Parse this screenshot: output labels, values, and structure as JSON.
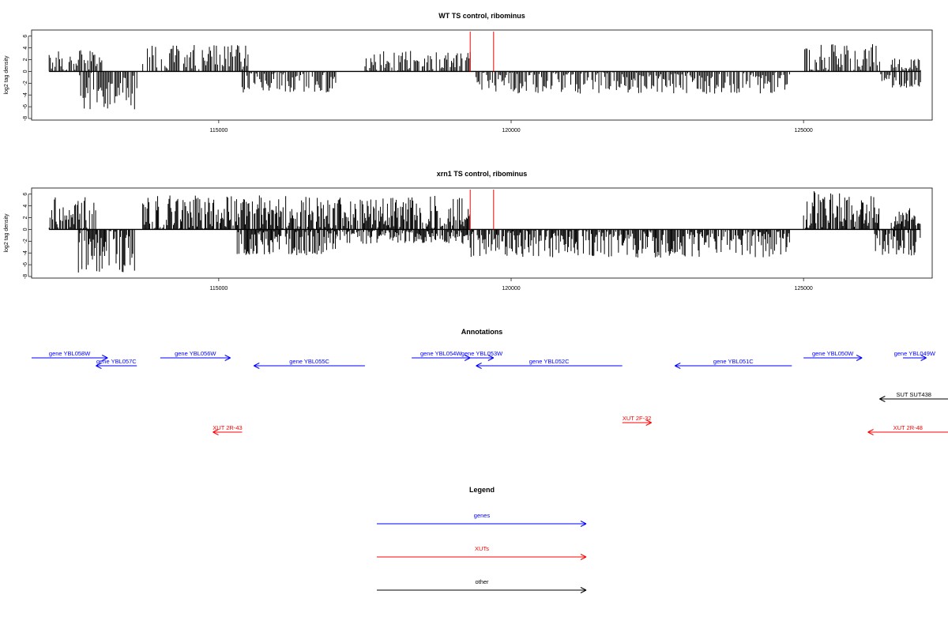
{
  "chart_data": [
    {
      "type": "bar",
      "title": "WT TS control, ribominus",
      "ylabel": "log2 tag density",
      "xlim": [
        111800,
        127200
      ],
      "ylim": [
        -8,
        6.5
      ],
      "xticks": [
        115000,
        120000,
        125000
      ],
      "yticks": [
        -8,
        -6,
        -4,
        -2,
        0,
        2,
        4,
        6
      ],
      "markers": [
        119300,
        119700
      ],
      "marker_color": "#ff0000",
      "profile": {
        "start": 112100,
        "end": 127000,
        "bin": 20,
        "plus": [
          {
            "from": 112100,
            "to": 113000,
            "max": 3.6
          },
          {
            "from": 113700,
            "to": 115500,
            "max": 4.5
          },
          {
            "from": 117500,
            "to": 119300,
            "max": 3.5
          },
          {
            "from": 125000,
            "to": 126300,
            "max": 4.8
          },
          {
            "from": 126500,
            "to": 127000,
            "max": 2.4
          }
        ],
        "minus": [
          {
            "from": 112600,
            "to": 113600,
            "max": 6.5
          },
          {
            "from": 115400,
            "to": 117000,
            "max": 3.6
          },
          {
            "from": 119400,
            "to": 124800,
            "max": 3.8
          },
          {
            "from": 126300,
            "to": 127000,
            "max": 2.8
          }
        ]
      }
    },
    {
      "type": "bar",
      "title": "xrn1 TS control, ribominus",
      "ylabel": "log2 tag density",
      "xlim": [
        111800,
        127200
      ],
      "ylim": [
        -8,
        6.5
      ],
      "xticks": [
        115000,
        120000,
        125000
      ],
      "yticks": [
        -8,
        -6,
        -4,
        -2,
        0,
        2,
        4,
        6
      ],
      "markers": [
        119300,
        119700
      ],
      "marker_color": "#ff0000",
      "profile": {
        "start": 112100,
        "end": 127000,
        "bin": 15,
        "plus": [
          {
            "from": 112100,
            "to": 112900,
            "max": 5.5
          },
          {
            "from": 113700,
            "to": 119300,
            "max": 5.8
          },
          {
            "from": 125000,
            "to": 126300,
            "max": 6.5
          },
          {
            "from": 126500,
            "to": 127000,
            "max": 3.6
          }
        ],
        "minus": [
          {
            "from": 112600,
            "to": 113600,
            "max": 7.4
          },
          {
            "from": 115300,
            "to": 117000,
            "max": 4.5
          },
          {
            "from": 117000,
            "to": 119300,
            "max": 2.5
          },
          {
            "from": 119300,
            "to": 124800,
            "max": 4.8
          },
          {
            "from": 126200,
            "to": 127000,
            "max": 4.5
          }
        ]
      }
    }
  ],
  "annotations": {
    "title": "Annotations",
    "colors": {
      "genes": "#0000ff",
      "XUTs": "#ff0000",
      "other": "#000000"
    },
    "features": [
      {
        "label": "gene YBL058W",
        "start": 111800,
        "end": 113100,
        "strand": "+",
        "class": "genes",
        "row": 0
      },
      {
        "label": "gene YBL057C",
        "start": 112900,
        "end": 113600,
        "strand": "-",
        "class": "genes",
        "row": 1
      },
      {
        "label": "gene YBL056W",
        "start": 114000,
        "end": 115200,
        "strand": "+",
        "class": "genes",
        "row": 0
      },
      {
        "label": "gene YBL055C",
        "start": 115600,
        "end": 117500,
        "strand": "-",
        "class": "genes",
        "row": 1
      },
      {
        "label": "gene YBL054W",
        "start": 118300,
        "end": 119300,
        "strand": "+",
        "class": "genes",
        "row": 0
      },
      {
        "label": "gene YBL053W",
        "start": 119300,
        "end": 119700,
        "strand": "+",
        "class": "genes",
        "row": 0
      },
      {
        "label": "gene YBL052C",
        "start": 119400,
        "end": 121900,
        "strand": "-",
        "class": "genes",
        "row": 1
      },
      {
        "label": "gene YBL051C",
        "start": 122800,
        "end": 124800,
        "strand": "-",
        "class": "genes",
        "row": 1
      },
      {
        "label": "gene YBL050W",
        "start": 125000,
        "end": 126000,
        "strand": "+",
        "class": "genes",
        "row": 0
      },
      {
        "label": "gene YBL049W",
        "start": 126700,
        "end": 127100,
        "strand": "+",
        "class": "genes",
        "row": 0
      },
      {
        "label": "SUT SUT438",
        "start": 126300,
        "end": 127700,
        "strand": "-",
        "class": "other",
        "row": 3
      },
      {
        "label": "XUT 2R-43",
        "start": 114900,
        "end": 115400,
        "strand": "-",
        "class": "XUTs",
        "row": 5
      },
      {
        "label": "XUT 2F-32",
        "start": 121900,
        "end": 122400,
        "strand": "+",
        "class": "XUTs",
        "row": 4
      },
      {
        "label": "XUT 2R-48",
        "start": 126100,
        "end": 127700,
        "strand": "-",
        "class": "XUTs",
        "row": 5
      }
    ]
  },
  "legend": {
    "title": "Legend",
    "items": [
      {
        "label": "genes",
        "color": "#0000ff"
      },
      {
        "label": "XUTs",
        "color": "#ff0000"
      },
      {
        "label": "other",
        "color": "#000000"
      }
    ]
  }
}
